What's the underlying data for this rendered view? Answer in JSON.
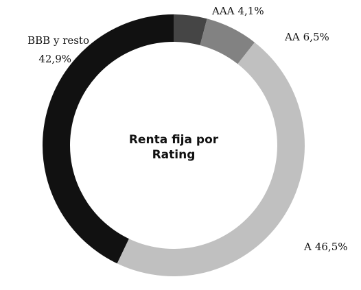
{
  "chart_data": {
    "type": "donut",
    "title": "Renta fija por Rating",
    "categories": [
      "AAA",
      "AA",
      "A",
      "BBB y resto"
    ],
    "values": [
      4.1,
      6.5,
      46.5,
      42.9
    ],
    "value_labels": [
      "4,1%",
      "6,5%",
      "46,5%",
      "42,9%"
    ],
    "colors": [
      "#454545",
      "#828282",
      "#c0c0c0",
      "#111111"
    ]
  }
}
